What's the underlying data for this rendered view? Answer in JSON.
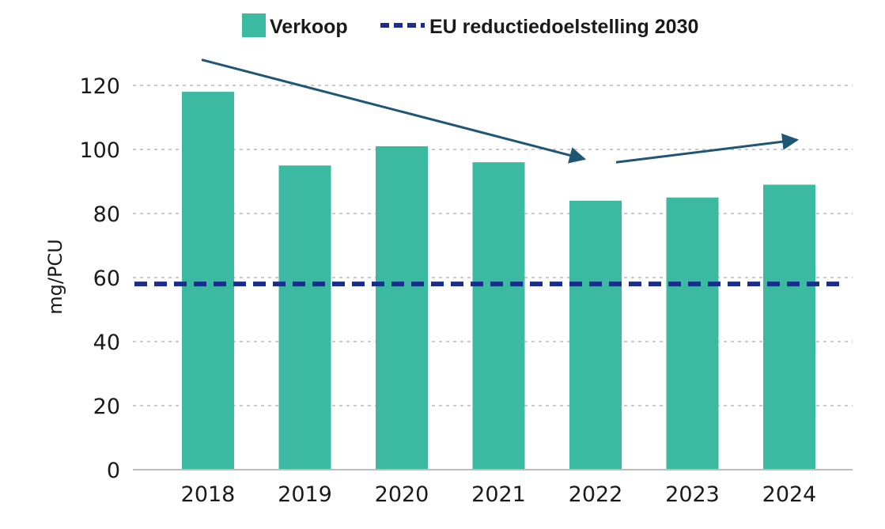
{
  "chart_data": {
    "type": "bar",
    "categories": [
      "2018",
      "2019",
      "2020",
      "2021",
      "2022",
      "2023",
      "2024"
    ],
    "series": [
      {
        "name": "Verkoop",
        "values": [
          118,
          95,
          101,
          96,
          84,
          85,
          89
        ]
      }
    ],
    "reference_line": {
      "name": "EU reductiedoelstelling 2030",
      "value": 58,
      "style": "dashed"
    },
    "ylabel": "mg/PCU",
    "xlabel": "",
    "ylim": [
      0,
      120
    ],
    "yticks": [
      0,
      20,
      40,
      60,
      80,
      100,
      120
    ],
    "grid": true,
    "legend_position": "top",
    "trend_arrows": [
      {
        "from": {
          "x": "2018",
          "y": 128
        },
        "to": {
          "x": "2022",
          "y": 97
        }
      },
      {
        "from": {
          "x": "2022",
          "y": 96
        },
        "to": {
          "x": "2024",
          "y": 103
        }
      }
    ],
    "colors": {
      "bar": "#3bb9a1",
      "reference_line": "#1a2d8f",
      "arrow": "#1f5673",
      "grid": "#b9b9b9",
      "axis": "#bdbdbd"
    }
  }
}
